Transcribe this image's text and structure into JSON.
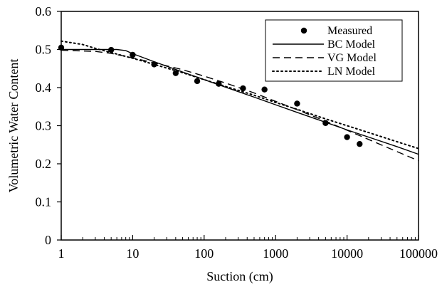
{
  "chart_data": {
    "type": "scatter",
    "title": "",
    "xlabel": "Suction (cm)",
    "ylabel": "Volumetric Water Content",
    "x_scale": "log",
    "xlim": [
      1,
      100000
    ],
    "ylim": [
      0,
      0.6
    ],
    "x_ticks": [
      1,
      10,
      100,
      1000,
      10000,
      100000
    ],
    "x_tick_labels": [
      "1",
      "10",
      "100",
      "1000",
      "10000",
      "100000"
    ],
    "y_ticks": [
      0,
      0.1,
      0.2,
      0.3,
      0.4,
      0.5,
      0.6
    ],
    "y_tick_labels": [
      "0",
      "0.1",
      "0.2",
      "0.3",
      "0.4",
      "0.5",
      "0.6"
    ],
    "grid": false,
    "legend_position": "top-right",
    "series": [
      {
        "name": "Measured",
        "style": "markers",
        "color": "#000000",
        "x": [
          1,
          5,
          10,
          20,
          40,
          80,
          160,
          350,
          700,
          2000,
          5000,
          10000,
          15000
        ],
        "y": [
          0.505,
          0.499,
          0.486,
          0.461,
          0.438,
          0.417,
          0.41,
          0.398,
          0.395,
          0.358,
          0.307,
          0.27,
          0.252
        ]
      },
      {
        "name": "BC Model",
        "style": "solid",
        "color": "#000000",
        "x": [
          1,
          3,
          6,
          8,
          10,
          20,
          50,
          100,
          200,
          500,
          1000,
          2000,
          5000,
          10000,
          20000,
          50000,
          100000
        ],
        "y": [
          0.5,
          0.5,
          0.5,
          0.497,
          0.489,
          0.468,
          0.441,
          0.421,
          0.401,
          0.375,
          0.355,
          0.335,
          0.309,
          0.289,
          0.27,
          0.245,
          0.225
        ]
      },
      {
        "name": "VG Model",
        "style": "dashed",
        "color": "#000000",
        "x": [
          1,
          3,
          5,
          10,
          20,
          50,
          100,
          200,
          500,
          1000,
          2000,
          5000,
          10000,
          20000,
          50000,
          100000
        ],
        "y": [
          0.498,
          0.495,
          0.49,
          0.478,
          0.465,
          0.447,
          0.43,
          0.412,
          0.386,
          0.364,
          0.342,
          0.312,
          0.288,
          0.264,
          0.232,
          0.208
        ]
      },
      {
        "name": "LN Model",
        "style": "dotted",
        "color": "#000000",
        "x": [
          1,
          2,
          3,
          5,
          10,
          20,
          50,
          100,
          200,
          500,
          1000,
          2000,
          5000,
          10000,
          20000,
          50000,
          100000
        ],
        "y": [
          0.522,
          0.513,
          0.503,
          0.492,
          0.477,
          0.461,
          0.439,
          0.421,
          0.403,
          0.38,
          0.361,
          0.343,
          0.318,
          0.3,
          0.282,
          0.258,
          0.24
        ]
      }
    ]
  }
}
